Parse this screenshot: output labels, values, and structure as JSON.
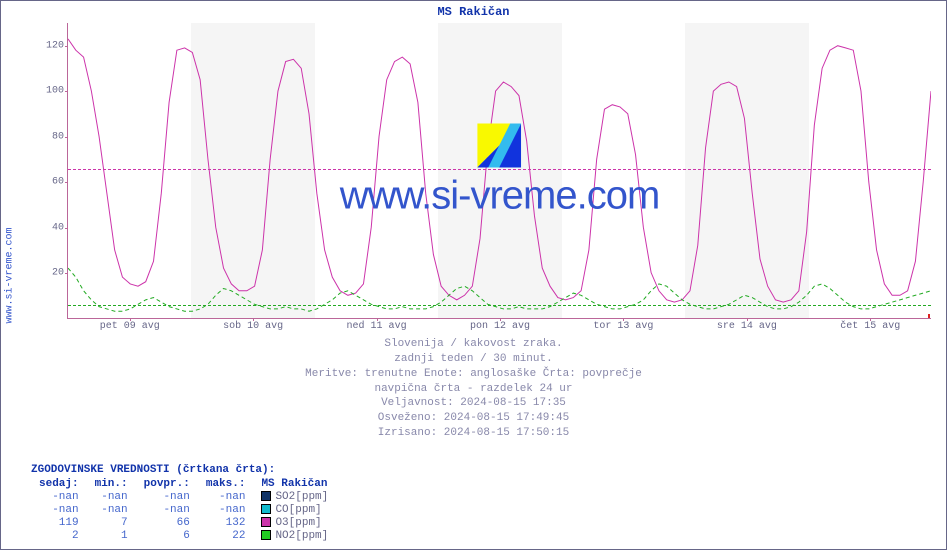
{
  "title": "MS Rakičan",
  "ylabel_outer": "www.si-vreme.com",
  "watermark_text": "www.si-vreme.com",
  "caption": [
    "Slovenija / kakovost zraka.",
    "zadnji teden / 30 minut.",
    "Meritve: trenutne  Enote: anglosaške  Črta: povprečje",
    "navpična črta - razdelek 24 ur",
    "Veljavnost: 2024-08-15 17:35",
    "Osveženo: 2024-08-15 17:49:45",
    "Izrisano: 2024-08-15 17:50:15"
  ],
  "chart": {
    "type": "line",
    "ylim": [
      0,
      130
    ],
    "yticks": [
      20,
      40,
      60,
      80,
      100,
      120
    ],
    "x_days": 7,
    "x_bands_alternate_color": "#f5f5f5",
    "x_labels": [
      "pet 09 avg",
      "sob 10 avg",
      "ned 11 avg",
      "pon 12 avg",
      "tor 13 avg",
      "sre 14 avg",
      "čet 15 avg"
    ],
    "axis_color": "#bb6699",
    "grid_color": "#e0e0e0",
    "hrules": [
      {
        "y": 66,
        "color": "#cc33aa"
      },
      {
        "y": 6,
        "color": "#22aa22"
      }
    ],
    "series": {
      "o3": {
        "color": "#cc33aa",
        "stroke_width": 1,
        "data": [
          123,
          118,
          115,
          100,
          80,
          55,
          30,
          18,
          15,
          14,
          16,
          25,
          55,
          95,
          118,
          119,
          117,
          105,
          70,
          40,
          22,
          15,
          12,
          12,
          14,
          30,
          70,
          100,
          113,
          114,
          110,
          90,
          55,
          30,
          18,
          12,
          10,
          11,
          15,
          40,
          80,
          105,
          113,
          115,
          112,
          95,
          55,
          28,
          14,
          10,
          8,
          10,
          14,
          35,
          75,
          100,
          104,
          102,
          98,
          78,
          45,
          22,
          14,
          9,
          8,
          9,
          12,
          30,
          70,
          92,
          94,
          93,
          90,
          72,
          40,
          20,
          12,
          8,
          7,
          8,
          12,
          32,
          75,
          100,
          103,
          104,
          102,
          88,
          55,
          26,
          14,
          8,
          7,
          8,
          12,
          38,
          85,
          110,
          118,
          120,
          119,
          118,
          100,
          60,
          30,
          15,
          10,
          10,
          12,
          25,
          60,
          100
        ]
      },
      "no2": {
        "color": "#22aa22",
        "stroke_width": 1,
        "dash": "4 3",
        "data": [
          22,
          18,
          12,
          8,
          5,
          4,
          3,
          3,
          4,
          6,
          8,
          9,
          7,
          5,
          4,
          3,
          3,
          4,
          6,
          10,
          13,
          12,
          10,
          8,
          6,
          5,
          4,
          4,
          5,
          4,
          4,
          3,
          4,
          6,
          8,
          11,
          12,
          10,
          8,
          6,
          5,
          4,
          4,
          5,
          4,
          4,
          4,
          5,
          7,
          10,
          13,
          14,
          12,
          9,
          6,
          5,
          4,
          4,
          5,
          4,
          4,
          4,
          5,
          7,
          9,
          11,
          10,
          8,
          6,
          5,
          4,
          4,
          5,
          6,
          8,
          12,
          15,
          14,
          11,
          8,
          6,
          5,
          4,
          4,
          5,
          6,
          8,
          10,
          9,
          7,
          5,
          4,
          4,
          5,
          7,
          10,
          14,
          15,
          13,
          10,
          7,
          5,
          4,
          4,
          5,
          6,
          7,
          8,
          9,
          10,
          11,
          12
        ]
      }
    }
  },
  "legend": {
    "header": "ZGODOVINSKE VREDNOSTI (črtkana črta):",
    "columns": [
      "sedaj:",
      "min.:",
      "povpr.:",
      "maks.:"
    ],
    "station_label": "MS Rakičan",
    "rows": [
      {
        "vals": [
          "-nan",
          "-nan",
          "-nan",
          "-nan"
        ],
        "swatch": "#113366",
        "label": "SO2[ppm]"
      },
      {
        "vals": [
          "-nan",
          "-nan",
          "-nan",
          "-nan"
        ],
        "swatch": "#11bbcc",
        "label": "CO[ppm]"
      },
      {
        "vals": [
          "119",
          "7",
          "66",
          "132"
        ],
        "swatch": "#cc33aa",
        "label": "O3[ppm]"
      },
      {
        "vals": [
          "2",
          "1",
          "6",
          "22"
        ],
        "swatch": "#22cc22",
        "label": "NO2[ppm]"
      }
    ]
  },
  "colors": {
    "text": "#666688",
    "title": "#1133aa",
    "link": "#3355cc",
    "value": "#4466cc"
  }
}
